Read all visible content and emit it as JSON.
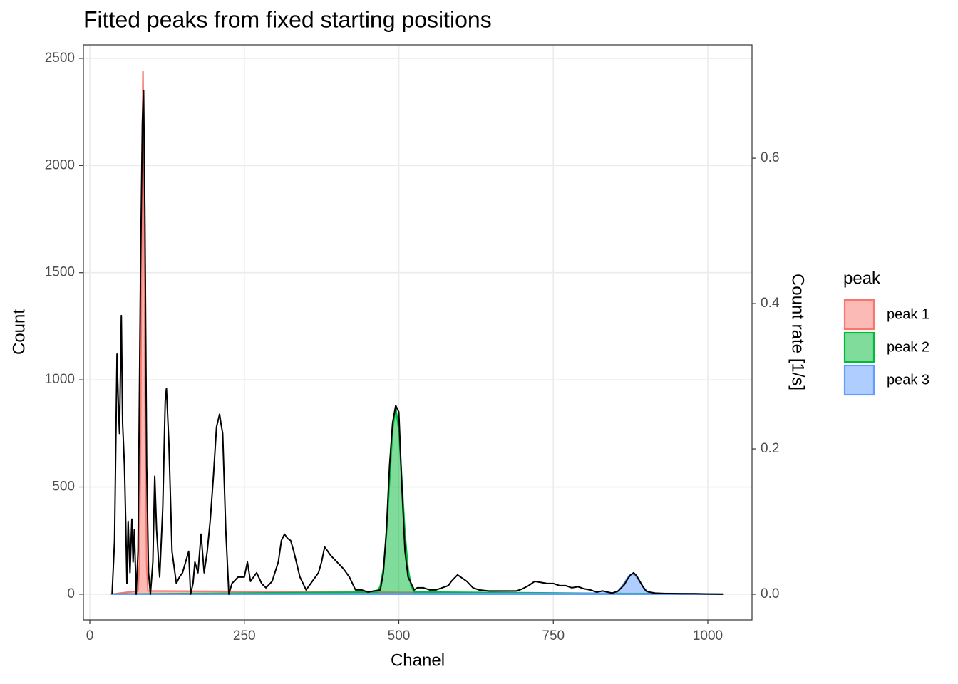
{
  "chart_data": {
    "type": "line",
    "title": "Fitted peaks from fixed starting positions",
    "x_label": "Chanel",
    "y_label": "Count",
    "y2_label": "Count rate [1/s]",
    "legend_title": "peak",
    "legend_position": "right",
    "grid": true,
    "xlim": [
      -10.4,
      1071.5
    ],
    "xticks": [
      0,
      250,
      500,
      750,
      1000
    ],
    "ylim": [
      -120,
      2563
    ],
    "yticks": [
      0,
      500,
      1000,
      1500,
      2000,
      2500
    ],
    "y2lim": [
      -0.0353,
      0.756
    ],
    "y2ticks": [
      {
        "value": 0,
        "label": "0.0"
      },
      0.2,
      0.4,
      0.6
    ],
    "series": [
      {
        "name": "peak 1",
        "type": "area",
        "color": "#F8766D",
        "fill": "#F8766D",
        "x": [
          35,
          78,
          80,
          82,
          84,
          86,
          88,
          90,
          92,
          94,
          1025
        ],
        "values": [
          0,
          15,
          137,
          678,
          1772,
          2440,
          1772,
          678,
          137,
          15,
          0
        ]
      },
      {
        "name": "peak 2",
        "type": "area",
        "color": "#00BA38",
        "fill": "#00BA38",
        "x": [
          35,
          465,
          470,
          475,
          480,
          485,
          490,
          495,
          500,
          505,
          510,
          515,
          520,
          525,
          1025
        ],
        "values": [
          0,
          10,
          38,
          118,
          282,
          528,
          768,
          870,
          768,
          528,
          282,
          118,
          38,
          10,
          0
        ]
      },
      {
        "name": "peak 3",
        "type": "area",
        "color": "#619CFF",
        "fill": "#619CFF",
        "x": [
          35,
          848,
          854,
          860,
          866,
          872,
          878,
          884,
          890,
          896,
          902,
          908,
          1025
        ],
        "values": [
          0,
          4,
          13,
          31,
          58,
          84,
          95,
          84,
          58,
          31,
          13,
          4,
          0
        ]
      },
      {
        "type": "line",
        "color": "#000000",
        "x": [
          36,
          40,
          44,
          46,
          48,
          51,
          53,
          56,
          58,
          60,
          62,
          65,
          68,
          70,
          72,
          75,
          78,
          82,
          85,
          87,
          89,
          92,
          95,
          98,
          102,
          105,
          108,
          113,
          118,
          122,
          124,
          128,
          133,
          140,
          145,
          150,
          155,
          160,
          163,
          167,
          170,
          175,
          180,
          185,
          190,
          195,
          200,
          205,
          210,
          212,
          215,
          220,
          225,
          230,
          240,
          250,
          255,
          260,
          265,
          270,
          278,
          285,
          295,
          305,
          310,
          315,
          320,
          325,
          330,
          340,
          345,
          350,
          360,
          370,
          375,
          380,
          385,
          390,
          400,
          410,
          420,
          430,
          440,
          450,
          460,
          470,
          475,
          480,
          485,
          490,
          495,
          500,
          505,
          510,
          515,
          520,
          525,
          530,
          540,
          550,
          560,
          570,
          580,
          585,
          590,
          595,
          600,
          610,
          620,
          630,
          645,
          660,
          675,
          690,
          700,
          710,
          720,
          730,
          740,
          750,
          760,
          770,
          780,
          790,
          800,
          810,
          820,
          830,
          845,
          855,
          860,
          865,
          870,
          875,
          880,
          885,
          890,
          895,
          900,
          905,
          915,
          930,
          940,
          960,
          980,
          1000,
          1025
        ],
        "values": [
          0,
          250,
          1120,
          900,
          750,
          1300,
          800,
          600,
          350,
          50,
          340,
          100,
          350,
          150,
          300,
          0,
          200,
          1500,
          2200,
          2350,
          1800,
          600,
          100,
          0,
          150,
          550,
          300,
          80,
          400,
          900,
          960,
          700,
          200,
          50,
          80,
          100,
          150,
          200,
          0,
          50,
          150,
          100,
          280,
          100,
          200,
          350,
          550,
          780,
          840,
          800,
          750,
          300,
          0,
          50,
          80,
          80,
          150,
          60,
          80,
          100,
          50,
          30,
          60,
          150,
          250,
          280,
          260,
          250,
          200,
          80,
          50,
          20,
          60,
          100,
          150,
          220,
          200,
          180,
          150,
          120,
          80,
          20,
          20,
          10,
          15,
          20,
          100,
          300,
          600,
          800,
          880,
          850,
          500,
          200,
          80,
          50,
          20,
          30,
          30,
          20,
          20,
          30,
          40,
          60,
          75,
          90,
          80,
          60,
          30,
          20,
          15,
          15,
          15,
          15,
          25,
          40,
          60,
          55,
          50,
          50,
          40,
          40,
          30,
          35,
          25,
          20,
          10,
          15,
          5,
          15,
          30,
          45,
          70,
          90,
          100,
          85,
          60,
          35,
          15,
          10,
          5,
          3,
          3,
          2,
          2,
          1,
          0
        ]
      }
    ]
  }
}
